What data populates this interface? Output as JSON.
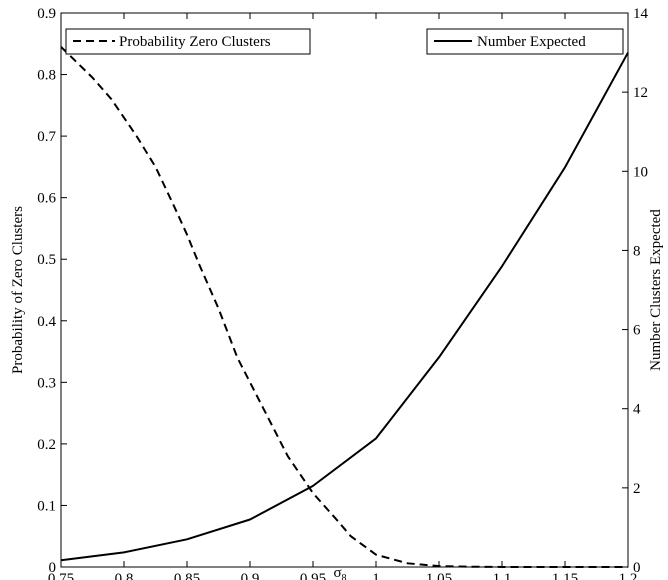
{
  "chart_data": {
    "type": "line",
    "xlabel": "σ",
    "xlabel_subscript": "8",
    "ylabel_left": "Probability of Zero Clusters",
    "ylabel_right": "Number Clusters Expected",
    "xlim": [
      0.75,
      1.2
    ],
    "ylim_left": [
      0,
      0.9
    ],
    "ylim_right": [
      0,
      14
    ],
    "x_ticks": [
      "0.75",
      "0.8",
      "0.85",
      "0.9",
      "0.95",
      "1",
      "1.05",
      "1.1",
      "1.15",
      "1.2"
    ],
    "y_left_ticks": [
      "0",
      "0.1",
      "0.2",
      "0.3",
      "0.4",
      "0.5",
      "0.6",
      "0.7",
      "0.8",
      "0.9"
    ],
    "y_right_ticks": [
      "0",
      "2",
      "4",
      "6",
      "8",
      "10",
      "12",
      "14"
    ],
    "grid": false,
    "series": [
      {
        "name": "Probability Zero Clusters",
        "axis": "left",
        "style": "dashed",
        "x": [
          0.75,
          0.76,
          0.775,
          0.79,
          0.8,
          0.81,
          0.825,
          0.84,
          0.85,
          0.86,
          0.875,
          0.89,
          0.9,
          0.915,
          0.93,
          0.95,
          0.97,
          0.98,
          1.0,
          1.025,
          1.05,
          1.075,
          1.1,
          1.15,
          1.2
        ],
        "y": [
          0.845,
          0.825,
          0.795,
          0.76,
          0.73,
          0.7,
          0.65,
          0.585,
          0.54,
          0.49,
          0.42,
          0.34,
          0.3,
          0.24,
          0.18,
          0.12,
          0.074,
          0.05,
          0.02,
          0.006,
          0.0015,
          0.0004,
          0.0001,
          0.0,
          0.0
        ]
      },
      {
        "name": "Number Expected",
        "axis": "right",
        "style": "solid",
        "x": [
          0.75,
          0.8,
          0.85,
          0.9,
          0.95,
          1.0,
          1.05,
          1.1,
          1.15,
          1.2
        ],
        "y": [
          0.17,
          0.37,
          0.7,
          1.2,
          2.05,
          3.25,
          5.3,
          7.6,
          10.1,
          13.0
        ]
      }
    ],
    "legend": {
      "left_entry": "Probability Zero Clusters",
      "right_entry": "Number Expected",
      "placement": "top"
    }
  }
}
